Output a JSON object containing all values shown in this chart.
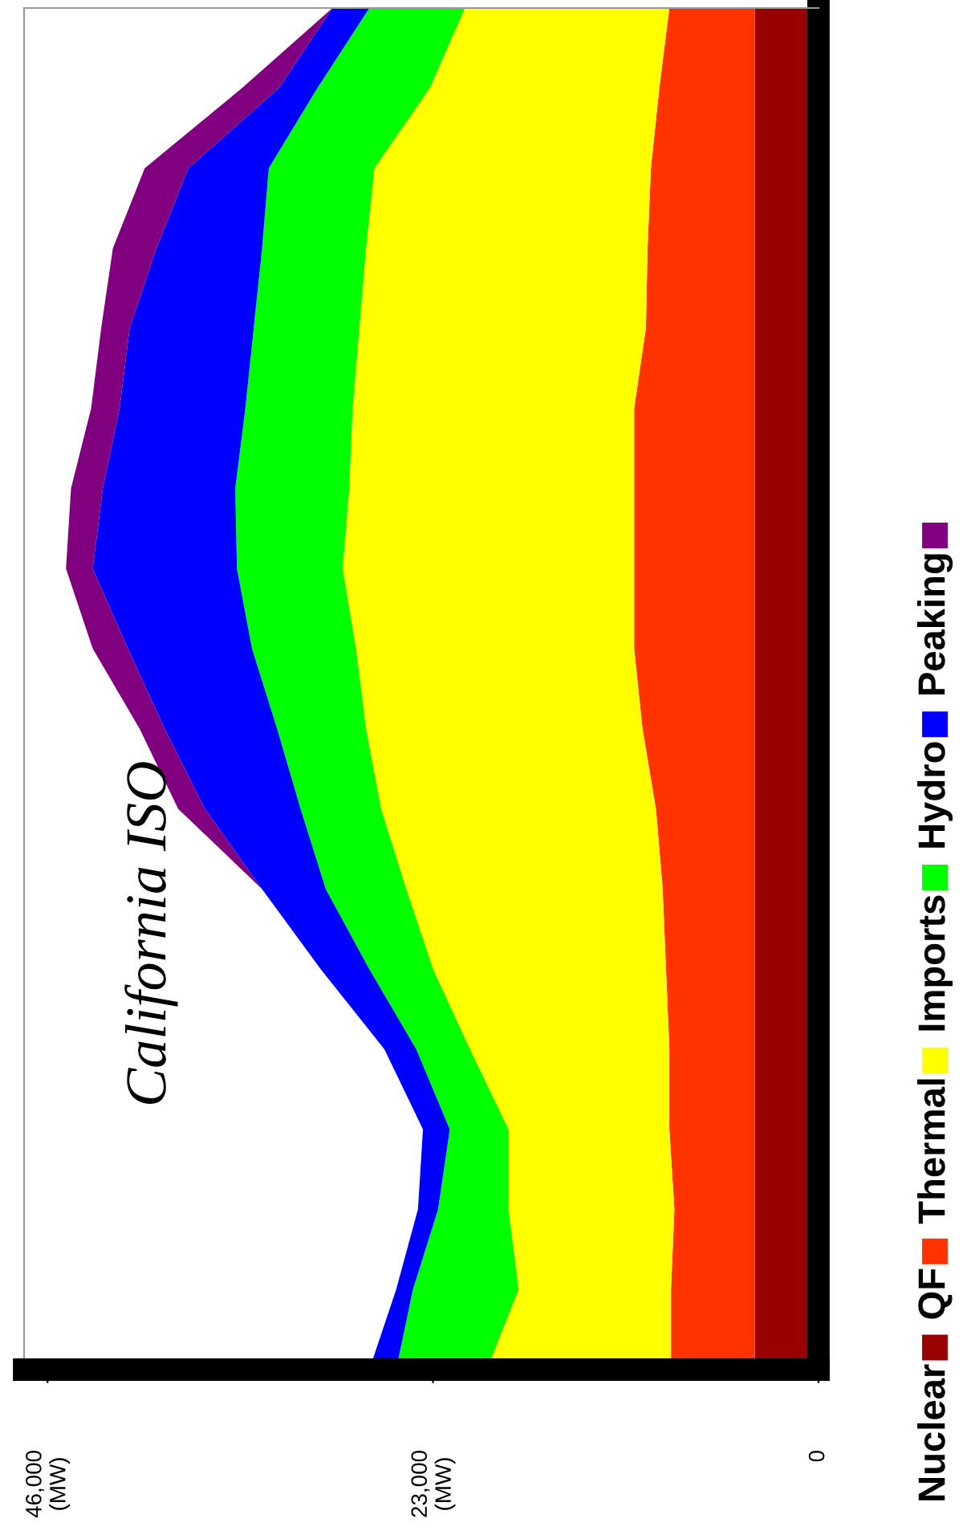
{
  "chart_data": {
    "type": "area",
    "stacked": true,
    "orientation": "horizontal",
    "title": "California ISO",
    "categories": [
      null,
      null,
      null,
      null,
      null,
      null,
      null,
      null,
      null,
      null,
      null,
      null,
      null,
      null,
      null,
      null,
      null,
      null
    ],
    "series": [
      {
        "name": "Nuclear",
        "color": "#990000",
        "values": [
          3800,
          3800,
          3800,
          3800,
          3800,
          3800,
          3800,
          3800,
          3800,
          3800,
          3800,
          3800,
          3800,
          3800,
          3800,
          3800,
          3800,
          3800
        ]
      },
      {
        "name": "QF",
        "color": "#ff3300",
        "values": [
          5100,
          5700,
          6200,
          6400,
          6500,
          7200,
          7200,
          7200,
          7200,
          6700,
          5900,
          5500,
          5300,
          5100,
          5100,
          4800,
          5000,
          5000
        ]
      },
      {
        "name": "Thermal",
        "color": "#ffff00",
        "values": [
          12200,
          13700,
          16500,
          16800,
          17100,
          16800,
          17000,
          17400,
          16600,
          16500,
          16400,
          15300,
          13900,
          11900,
          9600,
          9900,
          9100,
          11000
        ]
      },
      {
        "name": "Imports",
        "color": "#00ff00",
        "values": [
          5700,
          6700,
          6300,
          6200,
          6300,
          6400,
          6800,
          6300,
          6200,
          5300,
          4800,
          4800,
          3800,
          3200,
          3500,
          4200,
          6300,
          5400
        ]
      },
      {
        "name": "Hydro",
        "color": "#0000ff",
        "values": [
          2200,
          2300,
          4800,
          6300,
          7400,
          7500,
          7900,
          8600,
          7400,
          6700,
          5700,
          3800,
          2900,
          1900,
          1600,
          1200,
          1000,
          1600
        ]
      },
      {
        "name": "Peaking",
        "color": "#800080",
        "values": [
          0,
          2200,
          2600,
          2600,
          1700,
          1700,
          1900,
          1600,
          2100,
          1500,
          1600,
          0,
          0,
          0,
          0,
          0,
          0,
          0
        ]
      }
    ],
    "xlim": [
      47400,
      0
    ],
    "xticks": [
      {
        "value": 46000,
        "label": "46,000\n(MW)"
      },
      {
        "value": 23000,
        "label": "23,000\n(MW)"
      },
      0
    ],
    "tick_labels": "x",
    "legend": "right",
    "grid": false
  }
}
